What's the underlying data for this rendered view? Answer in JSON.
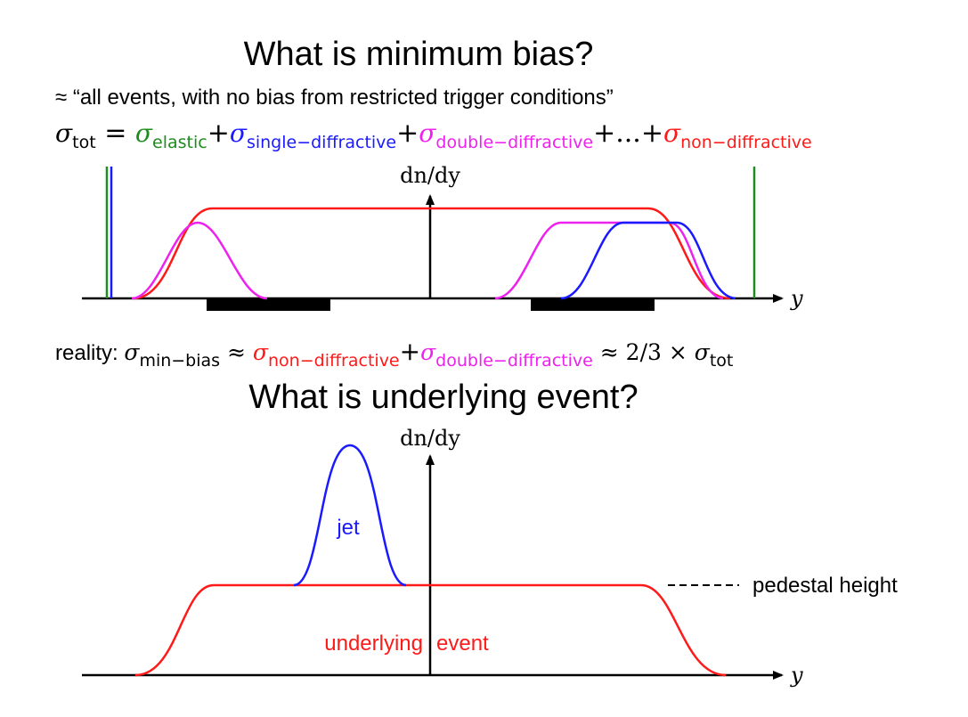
{
  "slide1": {
    "title": "What is minimum bias?",
    "subtitle": "≈ “all events, with no bias from restricted trigger conditions”",
    "sigma_sym": "σ",
    "tot_sub": "tot",
    "eq": " = ",
    "plus": "+",
    "dots": "...",
    "elastic_sub": "elastic",
    "single_sub": "single−diffractive",
    "double_sub": "double−diffractive",
    "nondiff_sub": "non−diffractive",
    "y_axis_label": "dn/dy",
    "x_axis_label": "y"
  },
  "reality": {
    "prefix": "reality: ",
    "sigma_sym": "σ",
    "minbias_sub": "min−bias",
    "approx": " ≈ ",
    "nondiff_sub": "non−diffractive",
    "plus": "+",
    "double_sub": "double−diffractive",
    "approx2": " ≈ 2/3 × ",
    "tot_sub": "tot"
  },
  "slide2": {
    "title": "What is underlying event?",
    "y_axis_label": "dn/dy",
    "x_axis_label": "y",
    "jet_label": "jet",
    "pedestal_label": "pedestal height",
    "ue_label_left": "underlying",
    "ue_label_right": "event"
  },
  "colors": {
    "elastic": "#1e8c1e",
    "single": "#1a1aff",
    "double": "#ee22ee",
    "nondiff": "#ff1a1a",
    "jet": "#1a1aff"
  }
}
